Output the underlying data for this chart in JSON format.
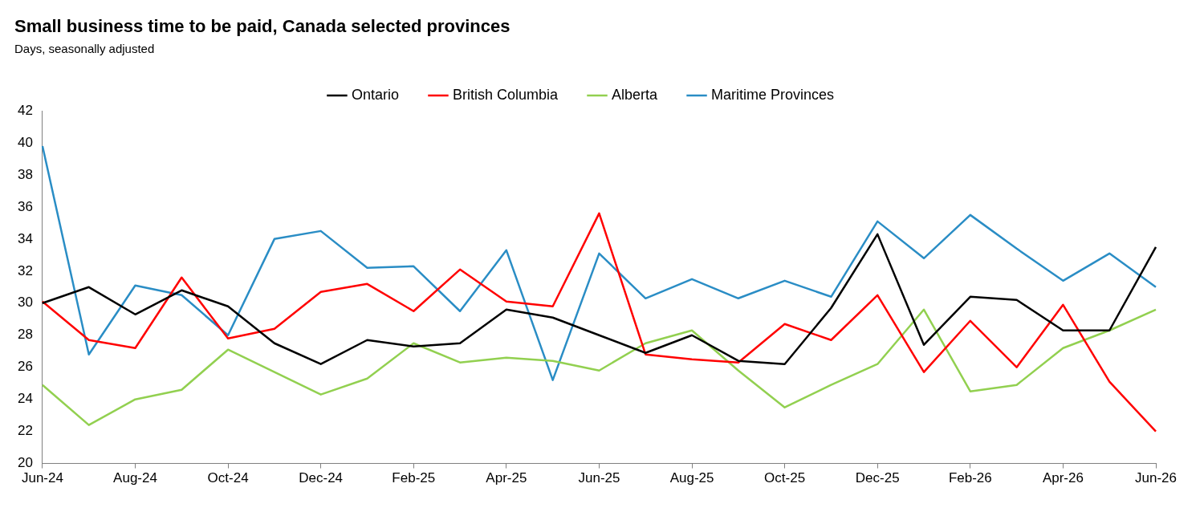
{
  "chart_data": {
    "type": "line",
    "title": "Small business time to be paid, Canada selected provinces",
    "subtitle": "Days, seasonally adjusted",
    "categories": [
      "Jun-24",
      null,
      "Aug-24",
      null,
      "Oct-24",
      null,
      "Dec-24",
      null,
      "Feb-25",
      null,
      "Apr-25",
      null,
      "Jun-25",
      null,
      "Aug-25",
      null,
      "Oct-25",
      null,
      "Dec-25",
      null,
      "Feb-26",
      null,
      "Apr-26",
      null,
      "Jun-26"
    ],
    "series": [
      {
        "name": "Ontario",
        "color": "#000000",
        "values": [
          30.0,
          31.0,
          29.3,
          30.8,
          29.8,
          27.5,
          26.2,
          27.7,
          27.3,
          27.5,
          29.6,
          29.1,
          28.0,
          26.9,
          28.0,
          26.4,
          26.2,
          29.7,
          34.3,
          27.4,
          30.4,
          30.2,
          28.3,
          28.3,
          33.5
        ]
      },
      {
        "name": "British Columbia",
        "color": "#ff0000",
        "values": [
          30.1,
          27.7,
          27.2,
          31.6,
          27.8,
          28.4,
          30.7,
          31.2,
          29.5,
          32.1,
          30.1,
          29.8,
          35.6,
          26.8,
          26.5,
          26.3,
          28.7,
          27.7,
          30.5,
          25.7,
          28.9,
          26.0,
          29.9,
          25.1,
          22.0
        ]
      },
      {
        "name": "Alberta",
        "color": "#92d050",
        "values": [
          24.9,
          22.4,
          24.0,
          24.6,
          27.1,
          25.7,
          24.3,
          25.3,
          27.5,
          26.3,
          26.6,
          26.4,
          25.8,
          27.5,
          28.3,
          25.8,
          23.5,
          24.9,
          26.2,
          29.6,
          24.5,
          24.9,
          27.2,
          28.3,
          29.6
        ]
      },
      {
        "name": "Maritime Provinces",
        "color": "#2a8dc5",
        "values": [
          39.8,
          26.8,
          31.1,
          30.5,
          28.0,
          34.0,
          34.5,
          32.2,
          32.3,
          29.5,
          33.3,
          25.2,
          33.1,
          30.3,
          31.5,
          30.3,
          31.4,
          30.4,
          35.1,
          32.8,
          35.5,
          33.4,
          31.4,
          33.1,
          31.0
        ]
      }
    ],
    "ylim": [
      20,
      42
    ],
    "yticks": [
      20,
      22,
      24,
      26,
      28,
      30,
      32,
      34,
      36,
      38,
      40,
      42
    ],
    "grid": false,
    "legend": "top",
    "marker": "none",
    "line_style": "solid"
  }
}
